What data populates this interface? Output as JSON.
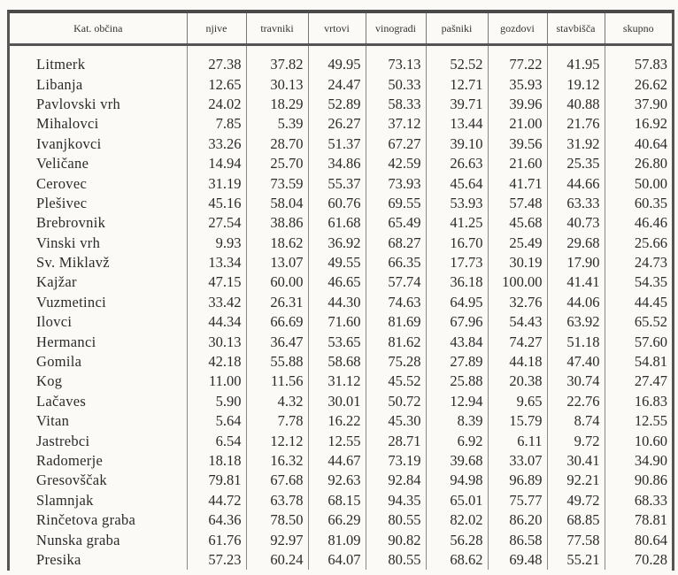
{
  "table": {
    "headers": [
      "Kat. občina",
      "njive",
      "travniki",
      "vrtovi",
      "vinogradi",
      "pašniki",
      "gozdovi",
      "stavbišča",
      "skupno"
    ],
    "rows": [
      [
        "Litmerk",
        "27.38",
        "37.82",
        "49.95",
        "73.13",
        "52.52",
        "77.22",
        "41.95",
        "57.83"
      ],
      [
        "Libanja",
        "12.65",
        "30.13",
        "24.47",
        "50.33",
        "12.71",
        "35.93",
        "19.12",
        "26.62"
      ],
      [
        "Pavlovski vrh",
        "24.02",
        "18.29",
        "52.89",
        "58.33",
        "39.71",
        "39.96",
        "40.88",
        "37.90"
      ],
      [
        "Mihalovci",
        "7.85",
        "5.39",
        "26.27",
        "37.12",
        "13.44",
        "21.00",
        "21.76",
        "16.92"
      ],
      [
        "Ivanjkovci",
        "33.26",
        "28.70",
        "51.37",
        "67.27",
        "39.10",
        "39.56",
        "31.92",
        "40.64"
      ],
      [
        "Veličane",
        "14.94",
        "25.70",
        "34.86",
        "42.59",
        "26.63",
        "21.60",
        "25.35",
        "26.80"
      ],
      [
        "Cerovec",
        "31.19",
        "73.59",
        "55.37",
        "73.93",
        "45.64",
        "41.71",
        "44.66",
        "50.00"
      ],
      [
        "Plešivec",
        "45.16",
        "58.04",
        "60.76",
        "69.55",
        "53.93",
        "57.48",
        "63.33",
        "60.35"
      ],
      [
        "Brebrovnik",
        "27.54",
        "38.86",
        "61.68",
        "65.49",
        "41.25",
        "45.68",
        "40.73",
        "46.46"
      ],
      [
        "Vinski vrh",
        "9.93",
        "18.62",
        "36.92",
        "68.27",
        "16.70",
        "25.49",
        "29.68",
        "25.66"
      ],
      [
        "Sv. Miklavž",
        "13.34",
        "13.07",
        "49.55",
        "66.35",
        "17.73",
        "30.19",
        "17.90",
        "24.73"
      ],
      [
        "Kajžar",
        "47.15",
        "60.00",
        "46.65",
        "57.74",
        "36.18",
        "100.00",
        "41.41",
        "54.35"
      ],
      [
        "Vuzmetinci",
        "33.42",
        "26.31",
        "44.30",
        "74.63",
        "64.95",
        "32.76",
        "44.06",
        "44.45"
      ],
      [
        "Ilovci",
        "44.34",
        "66.69",
        "71.60",
        "81.69",
        "67.96",
        "54.43",
        "63.92",
        "65.52"
      ],
      [
        "Hermanci",
        "30.13",
        "36.47",
        "53.65",
        "81.62",
        "43.84",
        "74.27",
        "51.18",
        "57.60"
      ],
      [
        "Gomila",
        "42.18",
        "55.88",
        "58.68",
        "75.28",
        "27.89",
        "44.18",
        "47.40",
        "54.81"
      ],
      [
        "Kog",
        "11.00",
        "11.56",
        "31.12",
        "45.52",
        "25.88",
        "20.38",
        "30.74",
        "27.47"
      ],
      [
        "Lačaves",
        "5.90",
        "4.32",
        "30.01",
        "50.72",
        "12.94",
        "9.65",
        "22.76",
        "16.83"
      ],
      [
        "Vitan",
        "5.64",
        "7.78",
        "16.22",
        "45.30",
        "8.39",
        "15.79",
        "8.74",
        "12.55"
      ],
      [
        "Jastrebci",
        "6.54",
        "12.12",
        "12.55",
        "28.71",
        "6.92",
        "6.11",
        "9.72",
        "10.60"
      ],
      [
        "Radomerje",
        "18.18",
        "16.32",
        "44.67",
        "73.19",
        "39.68",
        "33.07",
        "30.41",
        "34.90"
      ],
      [
        "Gresovščak",
        "79.81",
        "67.68",
        "92.63",
        "92.84",
        "94.98",
        "96.89",
        "92.21",
        "90.86"
      ],
      [
        "Slamnjak",
        "44.72",
        "63.78",
        "68.15",
        "94.35",
        "65.01",
        "75.77",
        "49.72",
        "68.33"
      ],
      [
        "Rinčetova graba",
        "64.36",
        "78.50",
        "66.29",
        "80.55",
        "82.02",
        "86.20",
        "68.85",
        "78.81"
      ],
      [
        "Nunska graba",
        "61.76",
        "92.97",
        "81.09",
        "90.82",
        "56.28",
        "86.58",
        "77.58",
        "80.64"
      ],
      [
        "Presika",
        "57.23",
        "60.24",
        "64.07",
        "80.55",
        "68.62",
        "69.48",
        "55.21",
        "70.28"
      ]
    ]
  }
}
